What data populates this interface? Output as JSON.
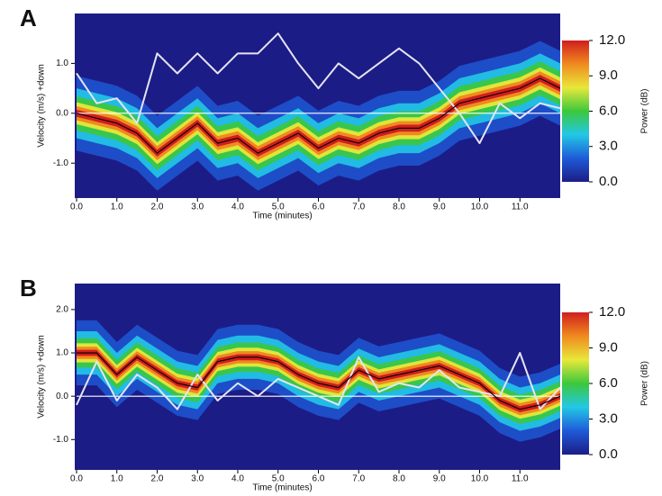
{
  "chart_data": [
    {
      "type": "line",
      "panel_label": "A",
      "x_label": "Time (minutes)",
      "y_label": "Velocity (m/s)  +down",
      "x": [
        0,
        0.5,
        1,
        1.5,
        2,
        2.5,
        3,
        3.5,
        4,
        4.5,
        5,
        5.5,
        6,
        6.5,
        7,
        7.5,
        8,
        8.5,
        9,
        9.5,
        10,
        10.5,
        11,
        11.5,
        12
      ],
      "series": [
        {
          "color": "#000000",
          "values": [
            0,
            -0.1,
            -0.2,
            -0.4,
            -0.8,
            -0.5,
            -0.2,
            -0.6,
            -0.5,
            -0.8,
            -0.6,
            -0.4,
            -0.7,
            -0.5,
            -0.6,
            -0.4,
            -0.3,
            -0.3,
            -0.1,
            0.2,
            0.3,
            0.4,
            0.5,
            0.7,
            0.5
          ]
        },
        {
          "color": "#e4e4f4",
          "values": [
            0.8,
            0.2,
            0.3,
            -0.2,
            1.2,
            0.8,
            1.2,
            0.8,
            1.2,
            1.2,
            1.6,
            1.0,
            0.5,
            1.0,
            0.7,
            1.0,
            1.3,
            1.0,
            0.5,
            0,
            -0.6,
            0.2,
            -0.1,
            0.2,
            0.1
          ]
        }
      ],
      "xlim": [
        0,
        12
      ],
      "ylim": [
        -1.7,
        2.0
      ],
      "xticks": [
        {
          "value": 0,
          "label": "0.0"
        },
        {
          "value": 1,
          "label": "1.0"
        },
        {
          "value": 2,
          "label": "2.0"
        },
        {
          "value": 3,
          "label": "3.0"
        },
        {
          "value": 4,
          "label": "4.0"
        },
        {
          "value": 5,
          "label": "5.0"
        },
        {
          "value": 6,
          "label": "6.0"
        },
        {
          "value": 7,
          "label": "7.0"
        },
        {
          "value": 8,
          "label": "8.0"
        },
        {
          "value": 9,
          "label": "9.0"
        },
        {
          "value": 10,
          "label": "10.0"
        },
        {
          "value": 11,
          "label": "11.0"
        }
      ],
      "yticks": [
        {
          "value": -1,
          "label": "-1.0"
        },
        {
          "value": 0,
          "label": "0.0"
        },
        {
          "value": 1,
          "label": "1.0"
        }
      ],
      "colorbar_label": "Power (dB)",
      "clim": [
        0,
        12
      ],
      "colorbar_ticks": [
        {
          "value": 0,
          "label": "0.0"
        },
        {
          "value": 3,
          "label": "3.0"
        },
        {
          "value": 6,
          "label": "6.0"
        },
        {
          "value": 9,
          "label": "9.0"
        },
        {
          "value": 12,
          "label": "12.0"
        }
      ],
      "colormap": [
        "#1c1c86",
        "#1f5ad8",
        "#22c8e6",
        "#3cc83c",
        "#e8e83a",
        "#f08a1e",
        "#d01e1e"
      ]
    },
    {
      "type": "line",
      "panel_label": "B",
      "x_label": "Time (minutes)",
      "y_label": "Velocity (m/s)  +down",
      "x": [
        0,
        0.5,
        1,
        1.5,
        2,
        2.5,
        3,
        3.5,
        4,
        4.5,
        5,
        5.5,
        6,
        6.5,
        7,
        7.5,
        8,
        8.5,
        9,
        9.5,
        10,
        10.5,
        11,
        11.5,
        12
      ],
      "series": [
        {
          "color": "#000000",
          "values": [
            1.0,
            1.0,
            0.5,
            0.9,
            0.6,
            0.3,
            0.2,
            0.8,
            0.9,
            0.9,
            0.8,
            0.5,
            0.3,
            0.2,
            0.6,
            0.4,
            0.5,
            0.6,
            0.7,
            0.5,
            0.3,
            -0.1,
            -0.3,
            -0.2,
            0
          ]
        },
        {
          "color": "#e4e4f4",
          "values": [
            -0.2,
            0.8,
            -0.1,
            0.5,
            0.2,
            -0.3,
            0.5,
            -0.1,
            0.3,
            0,
            0.4,
            0.2,
            0,
            -0.2,
            0.9,
            0.1,
            0.3,
            0.2,
            0.6,
            0.2,
            0.1,
            0,
            1.0,
            -0.3,
            0.2
          ]
        }
      ],
      "xlim": [
        0,
        12
      ],
      "ylim": [
        -1.7,
        2.6
      ],
      "xticks": [
        {
          "value": 0,
          "label": "0.0"
        },
        {
          "value": 1,
          "label": "1.0"
        },
        {
          "value": 2,
          "label": "2.0"
        },
        {
          "value": 3,
          "label": "3.0"
        },
        {
          "value": 4,
          "label": "4.0"
        },
        {
          "value": 5,
          "label": "5.0"
        },
        {
          "value": 6,
          "label": "6.0"
        },
        {
          "value": 7,
          "label": "7.0"
        },
        {
          "value": 8,
          "label": "8.0"
        },
        {
          "value": 9,
          "label": "9.0"
        },
        {
          "value": 10,
          "label": "10.0"
        },
        {
          "value": 11,
          "label": "11.0"
        }
      ],
      "yticks": [
        {
          "value": -1,
          "label": "-1.0"
        },
        {
          "value": 0,
          "label": "0.0"
        },
        {
          "value": 1,
          "label": "1.0"
        },
        {
          "value": 2,
          "label": "2.0"
        }
      ],
      "colorbar_label": "Power (dB)",
      "clim": [
        0,
        12
      ],
      "colorbar_ticks": [
        {
          "value": 0,
          "label": "0.0"
        },
        {
          "value": 3,
          "label": "3.0"
        },
        {
          "value": 6,
          "label": "6.0"
        },
        {
          "value": 9,
          "label": "9.0"
        },
        {
          "value": 12,
          "label": "12.0"
        }
      ],
      "colormap": [
        "#1c1c86",
        "#1f5ad8",
        "#22c8e6",
        "#3cc83c",
        "#e8e83a",
        "#f08a1e",
        "#d01e1e"
      ]
    }
  ]
}
